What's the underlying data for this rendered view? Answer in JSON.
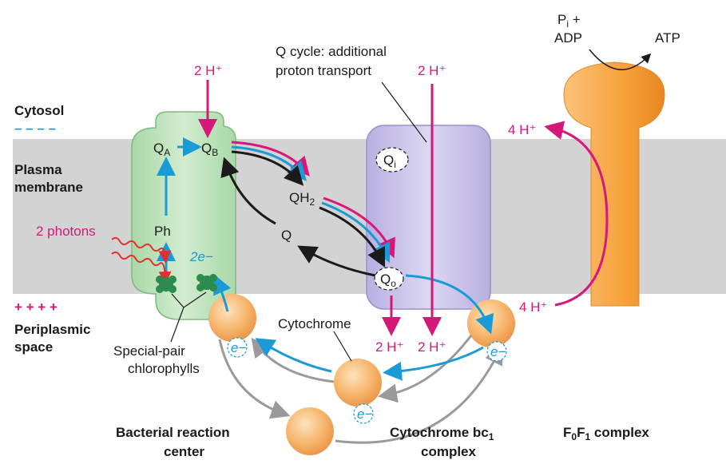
{
  "regions": {
    "cytosol": "Cytosol",
    "membrane_line1": "Plasma",
    "membrane_line2": "membrane",
    "periplasm_line1": "Periplasmic",
    "periplasm_line2": "space",
    "cytosol_charge": "– – – –",
    "periplasm_charge": "+ + + +"
  },
  "reaction_center": {
    "QA": "Q",
    "QA_sub": "A",
    "QB": "Q",
    "QB_sub": "B",
    "Ph": "Ph",
    "photons": "2 photons",
    "electrons": "2e−",
    "special_pair_line1": "Special-pair",
    "special_pair_line2": "chlorophylls",
    "protons_in": "2 H⁺",
    "title_line1": "Bacterial reaction",
    "title_line2": "center"
  },
  "quinone_pool": {
    "QH2": "QH",
    "QH2_sub": "2",
    "Q": "Q"
  },
  "bc1": {
    "Qi": "Q",
    "Qi_sub": "i",
    "Qo": "Q",
    "Qo_sub": "o",
    "qcycle_line1": "Q cycle: additional",
    "qcycle_line2": "proton transport",
    "protons_top": "2 H⁺",
    "protons_out_1": "2 H⁺",
    "protons_out_2": "2 H⁺",
    "cytochrome": "Cytochrome",
    "title_line1": "Cytochrome bc",
    "title_sub": "1",
    "title_line2": "complex"
  },
  "electron_label": "e−",
  "atp_synthase": {
    "pi_plus": "P",
    "pi_sub": "i",
    "pi_suffix": " +",
    "adp": "ADP",
    "atp": "ATP",
    "protons_top": "4 H⁺",
    "protons_bottom": "4 H⁺",
    "title_F0": "F",
    "title_F0_sub": "0",
    "title_F1": "F",
    "title_F1_sub": "1",
    "title_suffix": " complex"
  },
  "colors": {
    "membrane": "#d3d3d3",
    "reaction_center": "#bfe3bd",
    "bc1": "#c9c2e8",
    "atp_synthase": "#f7a13b",
    "proton_arrow": "#d6187a",
    "electron_arrow": "#1a9ad6",
    "quinone_arrow": "#1a1a1a",
    "cytochrome_arrow": "#9a9a9a"
  }
}
